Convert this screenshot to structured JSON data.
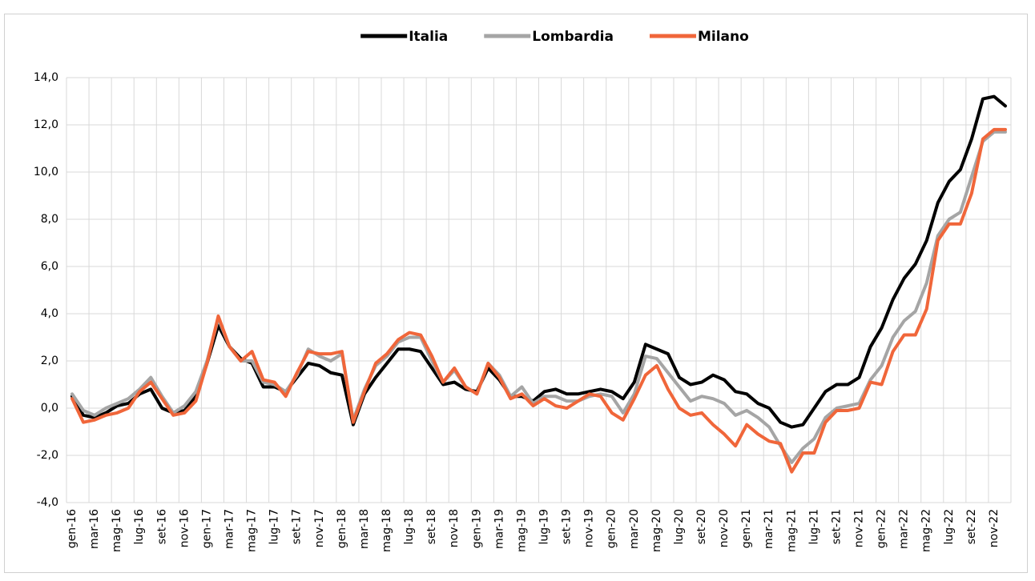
{
  "chart_data": {
    "type": "line",
    "categories": [
      "gen-16",
      null,
      "mar-16",
      null,
      "mag-16",
      null,
      "lug-16",
      null,
      "set-16",
      null,
      "nov-16",
      null,
      "gen-17",
      null,
      "mar-17",
      null,
      "mag-17",
      null,
      "lug-17",
      null,
      "set-17",
      null,
      "nov-17",
      null,
      "gen-18",
      null,
      "mar-18",
      null,
      "mag-18",
      null,
      "lug-18",
      null,
      "set-18",
      null,
      "nov-18",
      null,
      "gen-19",
      null,
      "mar-19",
      null,
      "mag-19",
      null,
      "lug-19",
      null,
      "set-19",
      null,
      "nov-19",
      null,
      "gen-20",
      null,
      "mar-20",
      null,
      "mag-20",
      null,
      "lug-20",
      null,
      "set-20",
      null,
      "nov-20",
      null,
      "gen-21",
      null,
      "mar-21",
      null,
      "mag-21",
      null,
      "lug-21",
      null,
      "set-21",
      null,
      "nov-21",
      null,
      "gen-22",
      null,
      "mar-22",
      null,
      "mag-22",
      null,
      "lug-22",
      null,
      "set-22",
      null,
      "nov-22",
      null
    ],
    "series": [
      {
        "name": "Italia",
        "color": "#000000",
        "values": [
          0.5,
          -0.3,
          -0.4,
          -0.2,
          0.1,
          0.2,
          0.6,
          0.8,
          0.0,
          -0.2,
          -0.1,
          0.5,
          1.9,
          3.5,
          2.6,
          2.1,
          1.9,
          0.9,
          0.9,
          0.7,
          1.3,
          1.9,
          1.8,
          1.5,
          1.4,
          -0.7,
          0.6,
          1.3,
          1.9,
          2.5,
          2.5,
          2.4,
          1.7,
          1.0,
          1.1,
          0.8,
          0.7,
          1.7,
          1.2,
          0.5,
          0.5,
          0.3,
          0.7,
          0.8,
          0.6,
          0.6,
          0.7,
          0.8,
          0.7,
          0.4,
          1.1,
          2.7,
          2.5,
          2.3,
          1.3,
          1.0,
          1.1,
          1.4,
          1.2,
          0.7,
          0.6,
          0.2,
          0.0,
          -0.6,
          -0.8,
          -0.7,
          0.0,
          0.7,
          1.0,
          1.0,
          1.3,
          2.6,
          3.4,
          4.6,
          5.5,
          6.1,
          7.1,
          8.7,
          9.6,
          10.1,
          11.4,
          13.1,
          13.2,
          12.8
        ]
      },
      {
        "name": "Lombardia",
        "color": "#a5a5a5",
        "values": [
          0.6,
          -0.1,
          -0.3,
          0.0,
          0.2,
          0.4,
          0.8,
          1.3,
          0.5,
          -0.2,
          0.1,
          0.7,
          2.0,
          3.8,
          2.6,
          2.0,
          2.0,
          1.1,
          1.0,
          0.7,
          1.4,
          2.5,
          2.2,
          2.0,
          2.3,
          -0.5,
          0.8,
          1.8,
          2.2,
          2.8,
          3.0,
          3.0,
          2.0,
          1.1,
          1.6,
          0.9,
          0.6,
          1.9,
          1.4,
          0.5,
          0.9,
          0.2,
          0.5,
          0.5,
          0.3,
          0.3,
          0.5,
          0.6,
          0.5,
          -0.2,
          0.6,
          2.2,
          2.1,
          1.5,
          0.9,
          0.3,
          0.5,
          0.4,
          0.2,
          -0.3,
          -0.1,
          -0.4,
          -0.8,
          -1.6,
          -2.3,
          -1.7,
          -1.3,
          -0.4,
          0.0,
          0.1,
          0.2,
          1.2,
          1.8,
          3.0,
          3.7,
          4.1,
          5.3,
          7.3,
          8.0,
          8.3,
          9.8,
          11.3,
          11.7,
          11.7
        ]
      },
      {
        "name": "Milano",
        "color": "#f0663a",
        "values": [
          0.4,
          -0.6,
          -0.5,
          -0.3,
          -0.2,
          0.0,
          0.7,
          1.1,
          0.4,
          -0.3,
          -0.2,
          0.3,
          1.9,
          3.9,
          2.6,
          2.0,
          2.4,
          1.2,
          1.1,
          0.5,
          1.5,
          2.4,
          2.3,
          2.3,
          2.4,
          -0.6,
          0.7,
          1.9,
          2.3,
          2.9,
          3.2,
          3.1,
          2.2,
          1.1,
          1.7,
          0.9,
          0.6,
          1.9,
          1.3,
          0.4,
          0.6,
          0.1,
          0.4,
          0.1,
          0.0,
          0.3,
          0.6,
          0.5,
          -0.2,
          -0.5,
          0.4,
          1.4,
          1.8,
          0.8,
          0.0,
          -0.3,
          -0.2,
          -0.7,
          -1.1,
          -1.6,
          -0.7,
          -1.1,
          -1.4,
          -1.5,
          -2.7,
          -1.9,
          -1.9,
          -0.6,
          -0.1,
          -0.1,
          0.0,
          1.1,
          1.0,
          2.4,
          3.1,
          3.1,
          4.2,
          7.1,
          7.8,
          7.8,
          9.1,
          11.4,
          11.8,
          11.8
        ]
      }
    ],
    "ylim": [
      -4,
      14
    ],
    "yticks": [
      {
        "value": -4,
        "label": "-4,0"
      },
      {
        "value": -2,
        "label": "-2,0"
      },
      {
        "value": 0,
        "label": "0,0"
      },
      {
        "value": 2,
        "label": "2,0"
      },
      {
        "value": 4,
        "label": "4,0"
      },
      {
        "value": 6,
        "label": "6,0"
      },
      {
        "value": 8,
        "label": "8,0"
      },
      {
        "value": 10,
        "label": "10,0"
      },
      {
        "value": 12,
        "label": "12,0"
      },
      {
        "value": 14,
        "label": "14,0"
      }
    ],
    "grid": true,
    "legend": "top"
  }
}
